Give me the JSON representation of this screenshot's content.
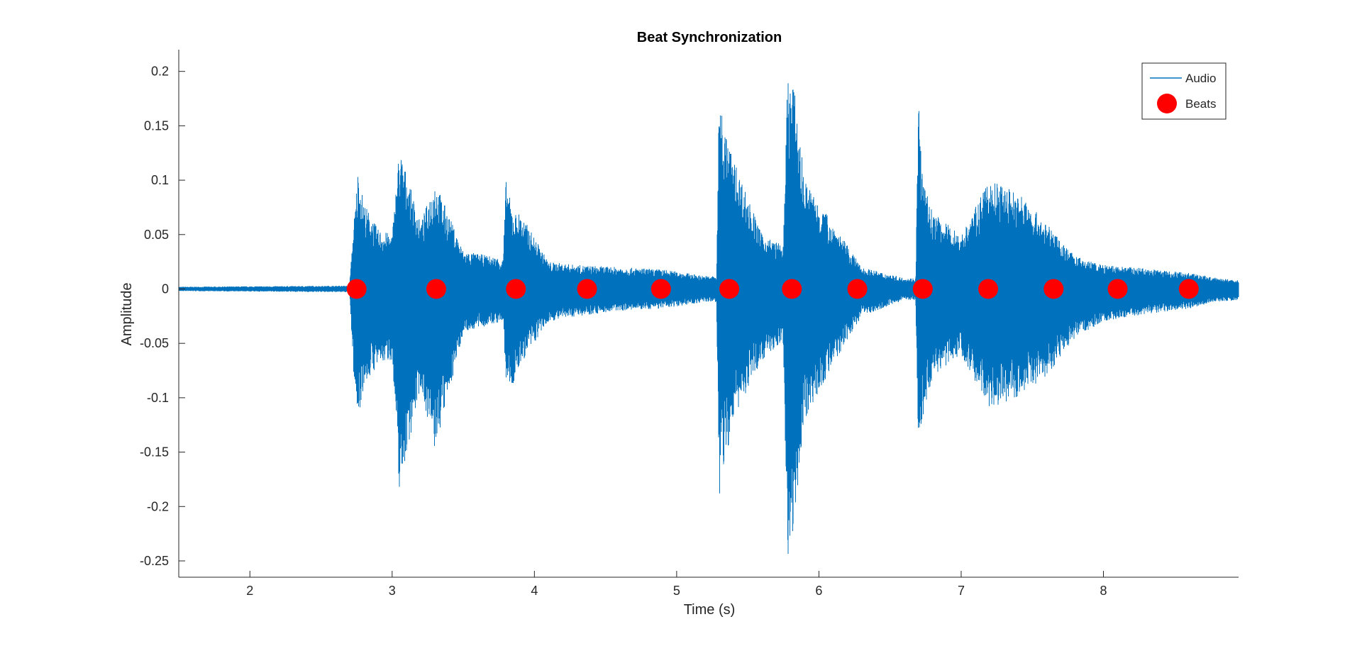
{
  "chart_data": {
    "type": "line",
    "title": "Beat Synchronization",
    "xlabel": "Time (s)",
    "ylabel": "Amplitude",
    "xlim": [
      1.5,
      8.95
    ],
    "ylim": [
      -0.265,
      0.22
    ],
    "xticks": [
      2,
      3,
      4,
      5,
      6,
      7,
      8
    ],
    "xtick_labels": [
      "2",
      "3",
      "4",
      "5",
      "6",
      "7",
      "8"
    ],
    "yticks": [
      0.2,
      0.15,
      0.1,
      0.05,
      0,
      -0.05,
      -0.1,
      -0.15,
      -0.2,
      -0.25
    ],
    "ytick_labels": [
      "0.2",
      "0.15",
      "0.1",
      "0.05",
      "0",
      "-0.05",
      "-0.1",
      "-0.15",
      "-0.2",
      "-0.25"
    ],
    "grid": false,
    "legend_position": "top-right",
    "series": [
      {
        "name": "Audio",
        "kind": "waveform",
        "color": "#0072BD",
        "envelope": {
          "x": [
            1.5,
            2.7,
            2.73,
            2.76,
            2.8,
            2.9,
            3.0,
            3.05,
            3.2,
            3.3,
            3.5,
            3.78,
            3.8,
            3.85,
            3.9,
            4.1,
            4.3,
            4.6,
            4.9,
            5.2,
            5.28,
            5.3,
            5.33,
            5.4,
            5.6,
            5.75,
            5.78,
            5.82,
            5.9,
            6.1,
            6.3,
            6.6,
            6.68,
            6.7,
            6.73,
            6.8,
            7.0,
            7.2,
            7.4,
            7.6,
            7.8,
            8.0,
            8.2,
            8.6,
            8.8,
            8.95
          ],
          "upper": [
            0.002,
            0.003,
            0.06,
            0.11,
            0.08,
            0.055,
            0.05,
            0.13,
            0.06,
            0.1,
            0.035,
            0.028,
            0.1,
            0.07,
            0.07,
            0.025,
            0.022,
            0.02,
            0.018,
            0.012,
            0.012,
            0.19,
            0.15,
            0.12,
            0.05,
            0.04,
            0.2,
            0.19,
            0.1,
            0.06,
            0.02,
            0.01,
            0.01,
            0.18,
            0.1,
            0.07,
            0.05,
            0.1,
            0.09,
            0.06,
            0.03,
            0.022,
            0.02,
            0.015,
            0.01,
            0.008
          ],
          "lower": [
            -0.002,
            -0.003,
            -0.08,
            -0.12,
            -0.09,
            -0.07,
            -0.065,
            -0.185,
            -0.09,
            -0.15,
            -0.04,
            -0.03,
            -0.085,
            -0.09,
            -0.07,
            -0.03,
            -0.025,
            -0.02,
            -0.018,
            -0.012,
            -0.012,
            -0.2,
            -0.17,
            -0.12,
            -0.065,
            -0.05,
            -0.25,
            -0.22,
            -0.12,
            -0.07,
            -0.025,
            -0.01,
            -0.01,
            -0.15,
            -0.12,
            -0.08,
            -0.06,
            -0.11,
            -0.1,
            -0.08,
            -0.045,
            -0.03,
            -0.025,
            -0.018,
            -0.012,
            -0.01
          ]
        }
      },
      {
        "name": "Beats",
        "kind": "scatter",
        "color": "#FF0000",
        "x": [
          2.75,
          3.31,
          3.87,
          4.37,
          4.89,
          5.37,
          5.81,
          6.27,
          6.73,
          7.19,
          7.65,
          8.1,
          8.6
        ],
        "y": [
          0,
          0,
          0,
          0,
          0,
          0,
          0,
          0,
          0,
          0,
          0,
          0,
          0
        ]
      }
    ]
  }
}
